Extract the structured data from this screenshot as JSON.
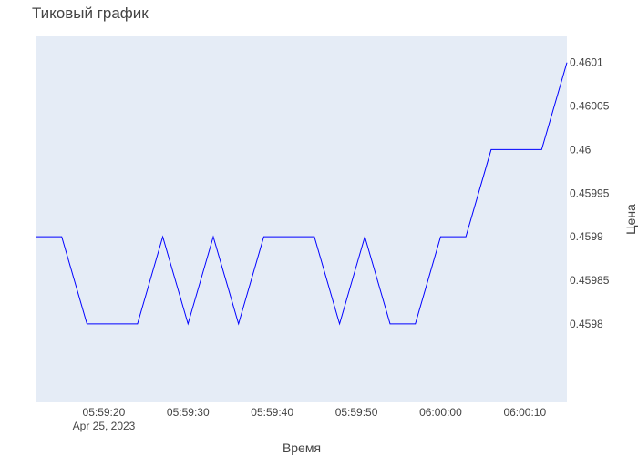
{
  "chart_data": {
    "type": "line",
    "title": "Тиковый график",
    "xlabel": "Время",
    "ylabel": "Цена",
    "x_axis": {
      "ticks": [
        "05:59:20",
        "05:59:30",
        "05:59:40",
        "05:59:50",
        "06:00:00",
        "06:00:10"
      ],
      "date_label": "Apr 25, 2023",
      "range": [
        "2023-04-25 05:59:12",
        "2023-04-25 06:00:15"
      ]
    },
    "y_axis": {
      "ticks": [
        "0.4598",
        "0.45985",
        "0.4599",
        "0.45995",
        "0.46",
        "0.46005",
        "0.4601"
      ],
      "range": [
        0.45971,
        0.46013
      ],
      "side": "right"
    },
    "series": [
      {
        "color": "#0000ff",
        "x": [
          "05:59:12",
          "05:59:15",
          "05:59:18",
          "05:59:21",
          "05:59:24",
          "05:59:27",
          "05:59:30",
          "05:59:33",
          "05:59:36",
          "05:59:39",
          "05:59:42",
          "05:59:45",
          "05:59:48",
          "05:59:51",
          "05:59:54",
          "05:59:57",
          "06:00:00",
          "06:00:03",
          "06:00:06",
          "06:00:09",
          "06:00:12",
          "06:00:15"
        ],
        "y": [
          0.4599,
          0.4599,
          0.4598,
          0.4598,
          0.4598,
          0.4599,
          0.4598,
          0.4599,
          0.4598,
          0.4599,
          0.4599,
          0.4599,
          0.4598,
          0.4599,
          0.4598,
          0.4598,
          0.4599,
          0.4599,
          0.46,
          0.46,
          0.46,
          0.4601
        ]
      }
    ],
    "grid": false,
    "background_color": "#e5ecf6",
    "legend": "none"
  }
}
